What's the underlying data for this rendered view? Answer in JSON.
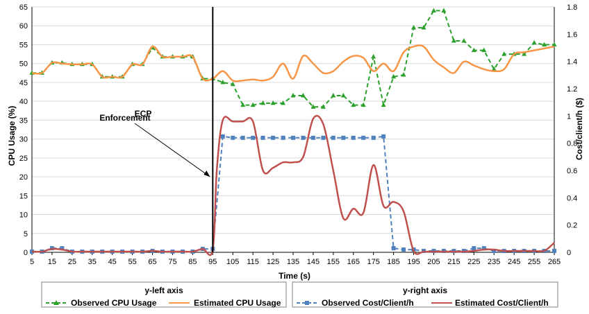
{
  "chart_data": {
    "type": "line",
    "xlabel": "Time (s)",
    "ylabel_left": "CPU Usage (%)",
    "ylabel_right": "Cost/client/h  ($)",
    "xlim": [
      5,
      265
    ],
    "ylim_left": [
      0,
      65
    ],
    "ylim_right": [
      0,
      1.8
    ],
    "x_ticks": [
      5,
      15,
      25,
      35,
      45,
      55,
      65,
      75,
      85,
      95,
      105,
      115,
      125,
      135,
      145,
      155,
      165,
      175,
      185,
      195,
      205,
      215,
      225,
      235,
      245,
      255,
      265
    ],
    "y_left_ticks": [
      0,
      5,
      10,
      15,
      20,
      25,
      30,
      35,
      40,
      45,
      50,
      55,
      60,
      65
    ],
    "y_right_ticks": [
      "0",
      "0.2",
      "0.4",
      "0.6",
      "0.8",
      "1",
      "1.2",
      "1.4",
      "1.6",
      "1.8"
    ],
    "grid": true,
    "annotation": {
      "line1": "ECP",
      "line2": "Enforcement",
      "x": 95
    },
    "legend": {
      "left_title": "y-left axis",
      "right_title": "y-right axis"
    },
    "series": [
      {
        "name": "Observed CPU Usage",
        "axis": "left",
        "color": "#2ca02c",
        "dashed": true,
        "marker": "triangle",
        "x": [
          5,
          10,
          15,
          20,
          25,
          30,
          35,
          40,
          45,
          50,
          55,
          60,
          65,
          70,
          75,
          80,
          85,
          90,
          95,
          100,
          105,
          110,
          115,
          120,
          125,
          130,
          135,
          140,
          145,
          150,
          155,
          160,
          165,
          170,
          175,
          180,
          185,
          190,
          195,
          200,
          205,
          210,
          215,
          220,
          225,
          230,
          235,
          240,
          245,
          250,
          255,
          260,
          265
        ],
        "values": [
          47.5,
          47.5,
          50.2,
          50.2,
          49.8,
          49.8,
          49.8,
          46.5,
          46.5,
          46.5,
          49.8,
          49.8,
          54.2,
          51.8,
          51.8,
          51.8,
          51.8,
          46,
          46,
          45,
          44.5,
          39,
          39,
          39.5,
          39.5,
          39.5,
          41.5,
          41.5,
          38.5,
          38.5,
          41.5,
          41.5,
          39,
          39,
          51.8,
          39,
          46.5,
          47,
          59.5,
          59.5,
          64,
          64,
          56,
          56,
          53.5,
          53.5,
          48.5,
          52.5,
          52.5,
          52.5,
          55.5,
          55,
          55
        ]
      },
      {
        "name": "Estimated CPU Usage",
        "axis": "left",
        "color": "#f79646",
        "dashed": false,
        "marker": "none",
        "x": [
          5,
          10,
          15,
          20,
          25,
          30,
          35,
          40,
          45,
          50,
          55,
          60,
          65,
          70,
          75,
          80,
          85,
          90,
          95,
          100,
          105,
          110,
          115,
          120,
          125,
          130,
          135,
          140,
          145,
          150,
          155,
          160,
          165,
          170,
          175,
          180,
          185,
          190,
          195,
          200,
          205,
          210,
          215,
          220,
          225,
          230,
          235,
          240,
          245,
          250,
          255,
          260,
          265
        ],
        "values": [
          47.5,
          47.5,
          50.2,
          50,
          49.8,
          49.8,
          49.8,
          46.5,
          46.5,
          46.5,
          49.8,
          49.8,
          54.5,
          51.8,
          51.8,
          51.8,
          51.8,
          46,
          46,
          48,
          45.5,
          45.5,
          45.8,
          45.5,
          46.5,
          50,
          46,
          52,
          50,
          47.5,
          48,
          50.5,
          52,
          51.5,
          48,
          50,
          48,
          53,
          54.5,
          54.5,
          51,
          49,
          47.5,
          50.5,
          49.5,
          48.5,
          48,
          48.5,
          52.5,
          53,
          53.5,
          54,
          54.5
        ]
      },
      {
        "name": "Observed Cost/Client/h",
        "axis": "right",
        "color": "#4f81bd",
        "dashed": true,
        "marker": "square",
        "x": [
          5,
          10,
          15,
          20,
          25,
          30,
          35,
          40,
          45,
          50,
          55,
          60,
          65,
          70,
          75,
          80,
          85,
          90,
          95,
          100,
          105,
          110,
          115,
          120,
          125,
          130,
          135,
          140,
          145,
          150,
          155,
          160,
          165,
          170,
          175,
          180,
          185,
          190,
          195,
          200,
          205,
          210,
          215,
          220,
          225,
          230,
          235,
          240,
          245,
          250,
          255,
          260,
          265
        ],
        "values": [
          0.005,
          0.005,
          0.03,
          0.03,
          0.005,
          0.005,
          0.005,
          0.005,
          0.005,
          0.005,
          0.005,
          0.005,
          0.01,
          0.005,
          0.005,
          0.005,
          0.005,
          0.025,
          0.025,
          0.85,
          0.84,
          0.84,
          0.84,
          0.84,
          0.84,
          0.84,
          0.84,
          0.84,
          0.84,
          0.84,
          0.84,
          0.84,
          0.84,
          0.84,
          0.84,
          0.85,
          0.03,
          0.02,
          0.02,
          0.01,
          0.01,
          0.01,
          0.01,
          0.01,
          0.03,
          0.03,
          0.01,
          0.01,
          0.01,
          0.01,
          0.01,
          0.01,
          0.01
        ]
      },
      {
        "name": "Estimated Cost/Client/h",
        "axis": "right",
        "color": "#c0504d",
        "dashed": false,
        "marker": "none",
        "x": [
          5,
          10,
          15,
          20,
          25,
          30,
          35,
          40,
          45,
          50,
          55,
          60,
          65,
          70,
          75,
          80,
          85,
          90,
          95,
          97,
          100,
          105,
          110,
          115,
          120,
          125,
          130,
          135,
          140,
          145,
          150,
          155,
          160,
          165,
          170,
          175,
          180,
          185,
          190,
          195,
          200,
          205,
          210,
          215,
          220,
          225,
          230,
          235,
          240,
          245,
          250,
          255,
          260,
          265
        ],
        "values": [
          0.005,
          0.005,
          0.025,
          0.02,
          0.005,
          0.005,
          0.005,
          0.005,
          0.005,
          0.005,
          0.005,
          0.005,
          0.01,
          0.005,
          0.005,
          0.005,
          0.005,
          0.025,
          0.02,
          0.6,
          0.97,
          0.96,
          0.96,
          0.96,
          0.6,
          0.62,
          0.66,
          0.66,
          0.7,
          0.98,
          0.94,
          0.6,
          0.25,
          0.32,
          0.29,
          0.64,
          0.34,
          0.37,
          0.3,
          0.01,
          0.005,
          0.005,
          0.005,
          0.005,
          0.005,
          0.01,
          0.02,
          0.02,
          0.01,
          0.01,
          0.01,
          0.01,
          0.01,
          0.07
        ]
      }
    ]
  }
}
